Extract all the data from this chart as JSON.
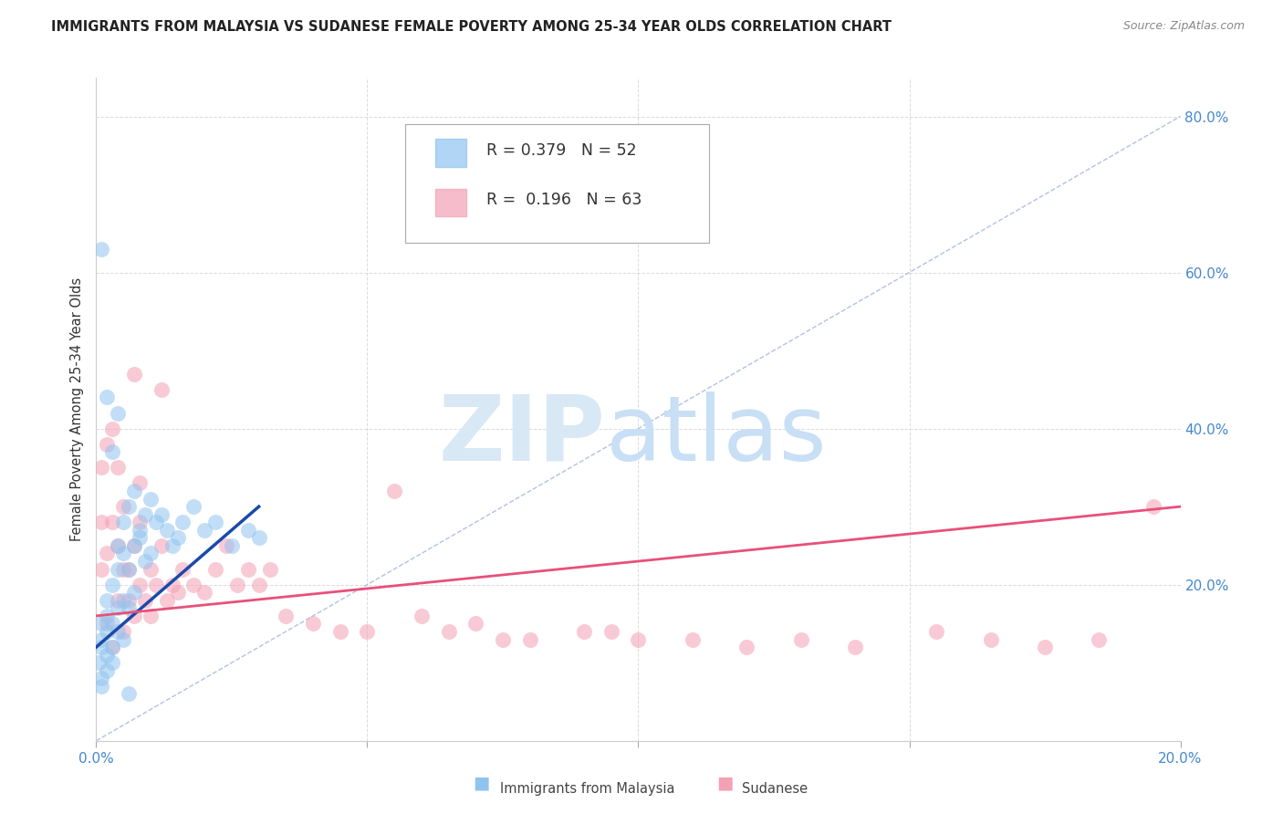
{
  "title": "IMMIGRANTS FROM MALAYSIA VS SUDANESE FEMALE POVERTY AMONG 25-34 YEAR OLDS CORRELATION CHART",
  "source": "Source: ZipAtlas.com",
  "ylabel": "Female Poverty Among 25-34 Year Olds",
  "xlim": [
    0.0,
    0.2
  ],
  "ylim": [
    0.0,
    0.85
  ],
  "ytick_vals": [
    0.0,
    0.2,
    0.4,
    0.6,
    0.8
  ],
  "xtick_vals": [
    0.0,
    0.05,
    0.1,
    0.15,
    0.2
  ],
  "legend_blue_R": "0.379",
  "legend_blue_N": "52",
  "legend_pink_R": "0.196",
  "legend_pink_N": "63",
  "blue_color": "#90c4f0",
  "pink_color": "#f4a0b5",
  "trendline_blue_color": "#1a4aaa",
  "trendline_pink_color": "#e8507a",
  "diagonal_color": "#aabbdd",
  "title_color": "#222222",
  "axis_label_color": "#333333",
  "right_axis_color": "#4488cc",
  "bottom_axis_color": "#4488cc",
  "watermark_color": "#d8e8f5",
  "grid_color": "#cccccc",
  "blue_scatter_x": [
    0.0005,
    0.001,
    0.001,
    0.001,
    0.001,
    0.001,
    0.002,
    0.002,
    0.002,
    0.002,
    0.002,
    0.003,
    0.003,
    0.003,
    0.003,
    0.004,
    0.004,
    0.004,
    0.004,
    0.005,
    0.005,
    0.005,
    0.005,
    0.006,
    0.006,
    0.006,
    0.007,
    0.007,
    0.007,
    0.008,
    0.008,
    0.009,
    0.009,
    0.01,
    0.01,
    0.011,
    0.012,
    0.013,
    0.014,
    0.015,
    0.016,
    0.018,
    0.02,
    0.022,
    0.025,
    0.028,
    0.03,
    0.004,
    0.002,
    0.001,
    0.003,
    0.006
  ],
  "blue_scatter_y": [
    0.1,
    0.08,
    0.12,
    0.15,
    0.07,
    0.13,
    0.11,
    0.14,
    0.09,
    0.16,
    0.18,
    0.12,
    0.2,
    0.1,
    0.15,
    0.14,
    0.17,
    0.22,
    0.25,
    0.13,
    0.18,
    0.24,
    0.28,
    0.17,
    0.22,
    0.3,
    0.25,
    0.32,
    0.19,
    0.26,
    0.27,
    0.23,
    0.29,
    0.24,
    0.31,
    0.28,
    0.29,
    0.27,
    0.25,
    0.26,
    0.28,
    0.3,
    0.27,
    0.28,
    0.25,
    0.27,
    0.26,
    0.42,
    0.44,
    0.63,
    0.37,
    0.06
  ],
  "pink_scatter_x": [
    0.001,
    0.001,
    0.001,
    0.002,
    0.002,
    0.002,
    0.003,
    0.003,
    0.003,
    0.004,
    0.004,
    0.004,
    0.005,
    0.005,
    0.005,
    0.006,
    0.006,
    0.007,
    0.007,
    0.008,
    0.008,
    0.009,
    0.01,
    0.01,
    0.011,
    0.012,
    0.013,
    0.014,
    0.015,
    0.016,
    0.018,
    0.02,
    0.022,
    0.024,
    0.026,
    0.028,
    0.03,
    0.032,
    0.035,
    0.04,
    0.045,
    0.05,
    0.055,
    0.06,
    0.065,
    0.07,
    0.075,
    0.08,
    0.09,
    0.095,
    0.1,
    0.11,
    0.12,
    0.13,
    0.14,
    0.155,
    0.165,
    0.175,
    0.185,
    0.195,
    0.012,
    0.007,
    0.008
  ],
  "pink_scatter_y": [
    0.22,
    0.28,
    0.35,
    0.15,
    0.24,
    0.38,
    0.12,
    0.28,
    0.4,
    0.18,
    0.25,
    0.35,
    0.14,
    0.22,
    0.3,
    0.18,
    0.22,
    0.16,
    0.25,
    0.2,
    0.28,
    0.18,
    0.22,
    0.16,
    0.2,
    0.25,
    0.18,
    0.2,
    0.19,
    0.22,
    0.2,
    0.19,
    0.22,
    0.25,
    0.2,
    0.22,
    0.2,
    0.22,
    0.16,
    0.15,
    0.14,
    0.14,
    0.32,
    0.16,
    0.14,
    0.15,
    0.13,
    0.13,
    0.14,
    0.14,
    0.13,
    0.13,
    0.12,
    0.13,
    0.12,
    0.14,
    0.13,
    0.12,
    0.13,
    0.3,
    0.45,
    0.47,
    0.33
  ],
  "blue_trend_x": [
    0.0,
    0.03
  ],
  "blue_trend_y": [
    0.12,
    0.3
  ],
  "pink_trend_x": [
    0.0,
    0.2
  ],
  "pink_trend_y": [
    0.16,
    0.3
  ]
}
